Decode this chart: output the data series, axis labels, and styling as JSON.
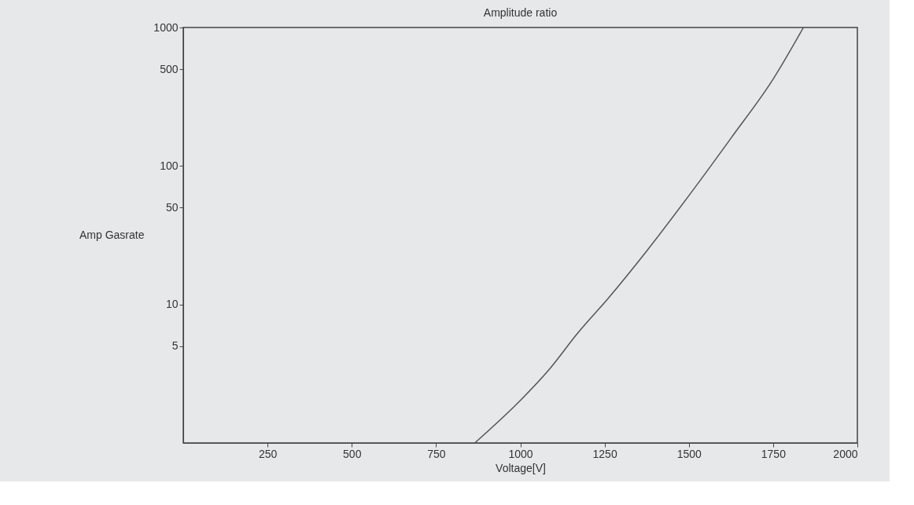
{
  "chart_data": {
    "type": "line",
    "title": "Amplitude ratio",
    "xlabel": "Voltage[V]",
    "ylabel": "Amp Gasrate",
    "x": [
      865,
      995,
      1086,
      1170,
      1261,
      1377,
      1510,
      1626,
      1751,
      1840
    ],
    "series": [
      {
        "color": "#555555",
        "values": [
          1,
          1.97,
          3.4,
          6.2,
          11.1,
          24.7,
          65.8,
          160,
          427,
          1000
        ]
      }
    ],
    "xlim": [
      0,
      2000
    ],
    "xticks": [
      250,
      500,
      750,
      1000,
      1250,
      1500,
      1750,
      2000
    ],
    "ylim": [
      1,
      1000
    ],
    "yticks": [
      5,
      10,
      50,
      100,
      500,
      1000
    ],
    "log": "y",
    "grid": false,
    "legend": false,
    "marker": "none",
    "line_style": "solid"
  }
}
